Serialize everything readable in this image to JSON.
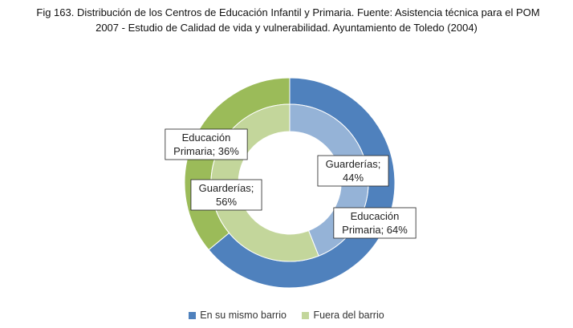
{
  "caption": {
    "line1": "Fig 163.  Distribución de los Centros de Educación Infantil y Primaria.  Fuente: Asistencia técnica para el POM",
    "line2": "2007 - Estudio de Calidad de vida y vulnerabilidad. Ayuntamiento de Toledo (2004)"
  },
  "chart_data": {
    "type": "pie",
    "subtype": "doughnut",
    "title": "",
    "series": [
      {
        "name": "En su mismo barrio",
        "ring": "outer",
        "categories": [
          "Educación Primaria",
          "Guarderías"
        ],
        "values": [
          64,
          36
        ],
        "labels": [
          "Educación\nPrimaria; 64%",
          "Educación\nPrimaria; 36%"
        ],
        "colors": [
          "#4f81bd",
          "#9bbb59"
        ]
      },
      {
        "name": "Fuera del barrio",
        "ring": "inner",
        "categories": [
          "Guarderías",
          "Guarderías"
        ],
        "values": [
          44,
          56
        ],
        "labels": [
          "Guarderías;\n44%",
          "Guarderías;\n56%"
        ],
        "colors": [
          "#95b3d7",
          "#c3d69b"
        ]
      }
    ],
    "legend": {
      "position": "bottom",
      "items": [
        {
          "label": "En su mismo barrio",
          "color": "#4f81bd"
        },
        {
          "label": "Fuera del barrio",
          "color": "#c3d69b"
        }
      ]
    }
  }
}
